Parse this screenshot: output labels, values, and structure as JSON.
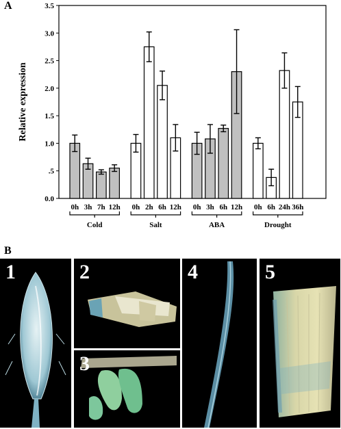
{
  "panel_a_label": "A",
  "panel_b_label": "B",
  "chart_data": {
    "type": "bar",
    "ylabel": "Relative expression",
    "xlabel": "",
    "ylim": [
      0,
      3.5
    ],
    "ytick_labels": [
      "0.0",
      ".5",
      "1.0",
      "1.5",
      "2.0",
      "2.5",
      "3.0",
      "3.5"
    ],
    "yticks": [
      0,
      0.5,
      1.0,
      1.5,
      2.0,
      2.5,
      3.0,
      3.5
    ],
    "grid": false,
    "groups": [
      {
        "name": "Cold",
        "fill": "#c0c0c0",
        "categories": [
          "0h",
          "3h",
          "7h",
          "12h"
        ],
        "values": [
          1.0,
          0.63,
          0.48,
          0.55
        ],
        "errors": [
          0.15,
          0.1,
          0.04,
          0.06
        ]
      },
      {
        "name": "Salt",
        "fill": "#ffffff",
        "categories": [
          "0h",
          "2h",
          "6h",
          "12h"
        ],
        "values": [
          1.0,
          2.75,
          2.05,
          1.1
        ],
        "errors": [
          0.16,
          0.27,
          0.26,
          0.24
        ]
      },
      {
        "name": "ABA",
        "fill": "#c0c0c0",
        "categories": [
          "0h",
          "3h",
          "6h",
          "12h"
        ],
        "values": [
          1.0,
          1.08,
          1.27,
          2.3
        ],
        "errors": [
          0.2,
          0.26,
          0.06,
          0.76
        ]
      },
      {
        "name": "Drought",
        "fill": "#ffffff",
        "categories": [
          "0h",
          "6h",
          "24h",
          "36h"
        ],
        "values": [
          1.0,
          0.38,
          2.32,
          1.75
        ],
        "errors": [
          0.1,
          0.15,
          0.32,
          0.28
        ]
      }
    ]
  },
  "photos": [
    {
      "number": "1"
    },
    {
      "number": "2"
    },
    {
      "number": "3"
    },
    {
      "number": "4"
    },
    {
      "number": "5"
    }
  ]
}
